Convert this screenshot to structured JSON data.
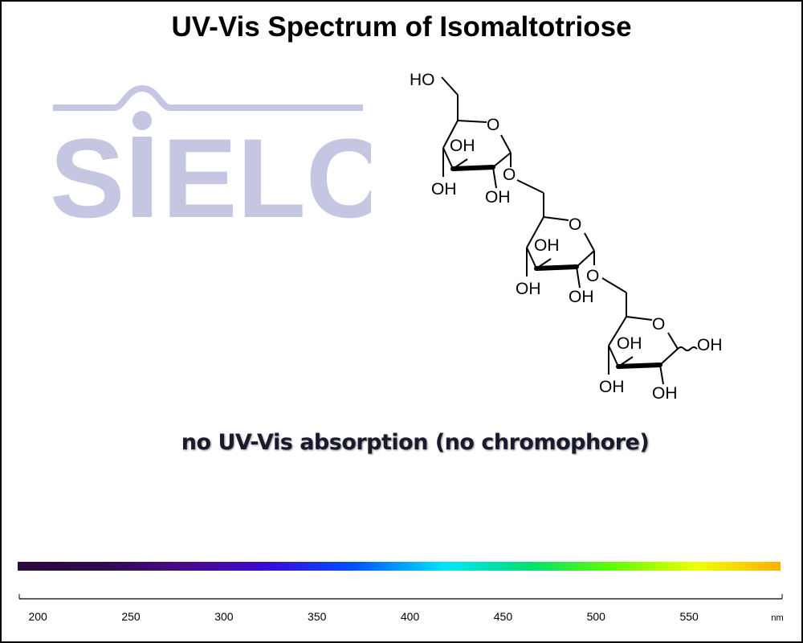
{
  "chart_data": {
    "type": "line",
    "title": "UV-Vis Spectrum of Isomaltotriose",
    "annotation": "no UV-Vis absorption (no chromophore)",
    "series": [],
    "xlabel": "",
    "x_unit": "nm",
    "xlim": [
      190,
      600
    ],
    "x_ticks": [
      200,
      250,
      300,
      350,
      400,
      450,
      500,
      550
    ],
    "x_tick_labels": [
      "200",
      "250",
      "300",
      "350",
      "400",
      "450",
      "500",
      "550"
    ],
    "ylabel": "",
    "grid": false
  },
  "watermark": {
    "text": "SIELC",
    "color": "#c4c6e2"
  },
  "molecule": {
    "labels": [
      "HO",
      "O",
      "OH",
      "OH",
      "OH",
      "O",
      "O",
      "OH",
      "OH",
      "OH",
      "O",
      "O",
      "OH",
      "OH",
      "OH",
      "OH"
    ]
  },
  "colors": {
    "spectrum_stops": [
      "#2b0b3f",
      "#2e0a4e",
      "#4a0a8c",
      "#3a0ad8",
      "#0050ff",
      "#00e5ff",
      "#00e070",
      "#60ff00",
      "#f0ff00",
      "#ffb000"
    ]
  }
}
